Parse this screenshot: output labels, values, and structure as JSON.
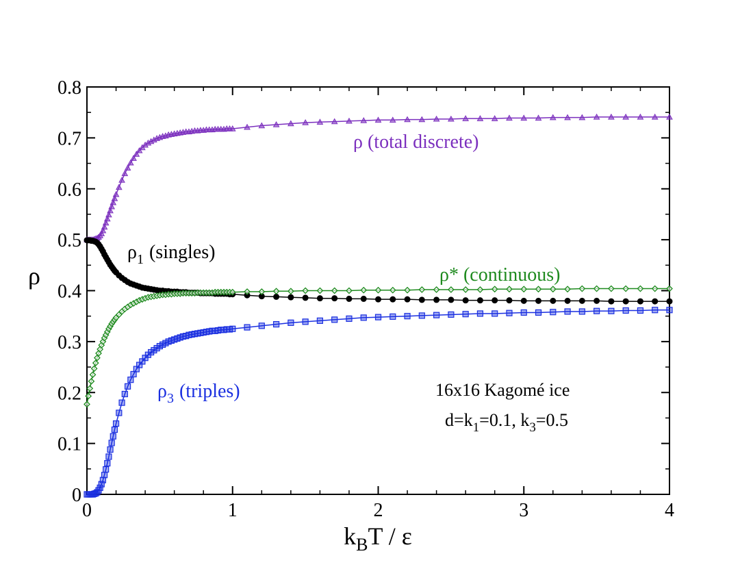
{
  "chart_data": {
    "type": "line",
    "title": "",
    "xlabel": {
      "main": "k",
      "sub": "B",
      "rest": "T / ε"
    },
    "ylabel": "ρ",
    "xlim": [
      0,
      4
    ],
    "ylim": [
      0,
      0.8
    ],
    "x_ticks": [
      "0",
      "1",
      "2",
      "3",
      "4"
    ],
    "y_ticks": [
      "0",
      "0.1",
      "0.2",
      "0.3",
      "0.4",
      "0.5",
      "0.6",
      "0.7",
      "0.8"
    ],
    "x_tick_values": [
      0,
      1,
      2,
      3,
      4
    ],
    "y_tick_values": [
      0,
      0.1,
      0.2,
      0.3,
      0.4,
      0.5,
      0.6,
      0.7,
      0.8
    ],
    "grid": false,
    "series": [
      {
        "name": "ρ (total discrete)",
        "marker": "triangle",
        "color": "#7b2fbe",
        "x": [
          0.0,
          0.01,
          0.02,
          0.03,
          0.04,
          0.05,
          0.06,
          0.07,
          0.08,
          0.09,
          0.1,
          0.11,
          0.12,
          0.13,
          0.14,
          0.15,
          0.16,
          0.17,
          0.18,
          0.19,
          0.2,
          0.22,
          0.24,
          0.26,
          0.28,
          0.3,
          0.32,
          0.34,
          0.36,
          0.38,
          0.4,
          0.42,
          0.44,
          0.46,
          0.48,
          0.5,
          0.52,
          0.54,
          0.56,
          0.58,
          0.6,
          0.62,
          0.64,
          0.66,
          0.68,
          0.7,
          0.72,
          0.74,
          0.76,
          0.78,
          0.8,
          0.82,
          0.84,
          0.86,
          0.88,
          0.9,
          0.92,
          0.94,
          0.96,
          0.98,
          1.0,
          1.1,
          1.2,
          1.3,
          1.4,
          1.5,
          1.6,
          1.7,
          1.8,
          1.9,
          2.0,
          2.1,
          2.2,
          2.3,
          2.4,
          2.5,
          2.6,
          2.7,
          2.8,
          2.9,
          3.0,
          3.1,
          3.2,
          3.3,
          3.4,
          3.5,
          3.6,
          3.7,
          3.8,
          3.9,
          4.0
        ],
        "y": [
          0.5,
          0.5,
          0.5,
          0.5,
          0.5,
          0.501,
          0.502,
          0.503,
          0.505,
          0.508,
          0.512,
          0.518,
          0.525,
          0.533,
          0.541,
          0.549,
          0.557,
          0.565,
          0.573,
          0.581,
          0.589,
          0.603,
          0.617,
          0.63,
          0.641,
          0.651,
          0.66,
          0.668,
          0.675,
          0.681,
          0.686,
          0.69,
          0.693,
          0.696,
          0.699,
          0.701,
          0.703,
          0.704,
          0.706,
          0.707,
          0.708,
          0.709,
          0.71,
          0.711,
          0.712,
          0.712,
          0.713,
          0.714,
          0.714,
          0.715,
          0.715,
          0.716,
          0.716,
          0.716,
          0.717,
          0.717,
          0.717,
          0.717,
          0.718,
          0.718,
          0.718,
          0.721,
          0.724,
          0.726,
          0.728,
          0.73,
          0.731,
          0.732,
          0.733,
          0.734,
          0.735,
          0.735,
          0.736,
          0.736,
          0.737,
          0.737,
          0.738,
          0.738,
          0.738,
          0.739,
          0.739,
          0.739,
          0.74,
          0.74,
          0.74,
          0.741,
          0.741,
          0.741,
          0.741,
          0.741,
          0.741
        ]
      },
      {
        "name": "ρ1 (singles)",
        "marker": "circle",
        "color": "#000000",
        "x": [
          0.0,
          0.01,
          0.02,
          0.03,
          0.04,
          0.05,
          0.06,
          0.07,
          0.08,
          0.09,
          0.1,
          0.11,
          0.12,
          0.13,
          0.14,
          0.15,
          0.16,
          0.17,
          0.18,
          0.19,
          0.2,
          0.22,
          0.24,
          0.26,
          0.28,
          0.3,
          0.32,
          0.34,
          0.36,
          0.38,
          0.4,
          0.42,
          0.44,
          0.46,
          0.48,
          0.5,
          0.52,
          0.54,
          0.56,
          0.58,
          0.6,
          0.62,
          0.64,
          0.66,
          0.68,
          0.7,
          0.72,
          0.74,
          0.76,
          0.78,
          0.8,
          0.82,
          0.84,
          0.86,
          0.88,
          0.9,
          0.92,
          0.94,
          0.96,
          0.98,
          1.0,
          1.1,
          1.2,
          1.3,
          1.4,
          1.5,
          1.6,
          1.7,
          1.8,
          1.9,
          2.0,
          2.1,
          2.2,
          2.3,
          2.4,
          2.5,
          2.6,
          2.7,
          2.8,
          2.9,
          3.0,
          3.1,
          3.2,
          3.3,
          3.4,
          3.5,
          3.6,
          3.7,
          3.8,
          3.9,
          4.0
        ],
        "y": [
          0.499,
          0.499,
          0.499,
          0.498,
          0.498,
          0.497,
          0.496,
          0.494,
          0.491,
          0.487,
          0.482,
          0.477,
          0.471,
          0.466,
          0.461,
          0.456,
          0.451,
          0.447,
          0.443,
          0.439,
          0.436,
          0.43,
          0.425,
          0.421,
          0.417,
          0.414,
          0.412,
          0.41,
          0.408,
          0.406,
          0.405,
          0.404,
          0.403,
          0.402,
          0.401,
          0.4,
          0.4,
          0.399,
          0.399,
          0.398,
          0.398,
          0.398,
          0.397,
          0.397,
          0.397,
          0.396,
          0.396,
          0.396,
          0.396,
          0.395,
          0.395,
          0.395,
          0.395,
          0.395,
          0.394,
          0.394,
          0.394,
          0.394,
          0.394,
          0.393,
          0.393,
          0.391,
          0.389,
          0.388,
          0.387,
          0.386,
          0.385,
          0.385,
          0.384,
          0.384,
          0.383,
          0.383,
          0.383,
          0.382,
          0.382,
          0.382,
          0.381,
          0.381,
          0.381,
          0.381,
          0.38,
          0.38,
          0.38,
          0.38,
          0.38,
          0.38,
          0.379,
          0.379,
          0.379,
          0.379,
          0.379
        ]
      },
      {
        "name": "ρ* (continuous)",
        "marker": "diamond",
        "color": "#1e8a1e",
        "x": [
          0.0,
          0.01,
          0.02,
          0.03,
          0.04,
          0.05,
          0.06,
          0.07,
          0.08,
          0.09,
          0.1,
          0.11,
          0.12,
          0.13,
          0.14,
          0.15,
          0.16,
          0.17,
          0.18,
          0.19,
          0.2,
          0.22,
          0.24,
          0.26,
          0.28,
          0.3,
          0.32,
          0.34,
          0.36,
          0.38,
          0.4,
          0.42,
          0.44,
          0.46,
          0.48,
          0.5,
          0.52,
          0.54,
          0.56,
          0.58,
          0.6,
          0.62,
          0.64,
          0.66,
          0.68,
          0.7,
          0.72,
          0.74,
          0.76,
          0.78,
          0.8,
          0.82,
          0.84,
          0.86,
          0.88,
          0.9,
          0.92,
          0.94,
          0.96,
          0.98,
          1.0,
          1.1,
          1.2,
          1.3,
          1.4,
          1.5,
          1.6,
          1.7,
          1.8,
          1.9,
          2.0,
          2.1,
          2.2,
          2.3,
          2.4,
          2.5,
          2.6,
          2.7,
          2.8,
          2.9,
          3.0,
          3.1,
          3.2,
          3.3,
          3.4,
          3.5,
          3.6,
          3.7,
          3.8,
          3.9,
          4.0
        ],
        "y": [
          0.177,
          0.193,
          0.208,
          0.222,
          0.235,
          0.247,
          0.258,
          0.268,
          0.277,
          0.285,
          0.293,
          0.3,
          0.307,
          0.313,
          0.319,
          0.325,
          0.33,
          0.335,
          0.339,
          0.343,
          0.347,
          0.353,
          0.359,
          0.364,
          0.368,
          0.372,
          0.375,
          0.378,
          0.381,
          0.383,
          0.385,
          0.387,
          0.388,
          0.389,
          0.39,
          0.391,
          0.392,
          0.392,
          0.393,
          0.393,
          0.394,
          0.394,
          0.394,
          0.395,
          0.395,
          0.395,
          0.395,
          0.395,
          0.396,
          0.396,
          0.396,
          0.396,
          0.396,
          0.396,
          0.397,
          0.397,
          0.397,
          0.397,
          0.397,
          0.397,
          0.397,
          0.398,
          0.398,
          0.399,
          0.399,
          0.4,
          0.4,
          0.4,
          0.4,
          0.401,
          0.401,
          0.401,
          0.401,
          0.402,
          0.402,
          0.402,
          0.402,
          0.402,
          0.403,
          0.403,
          0.403,
          0.403,
          0.403,
          0.403,
          0.404,
          0.404,
          0.404,
          0.404,
          0.404,
          0.404,
          0.404
        ]
      },
      {
        "name": "ρ3 (triples)",
        "marker": "square",
        "color": "#1a2fe0",
        "x": [
          0.0,
          0.01,
          0.02,
          0.03,
          0.04,
          0.05,
          0.06,
          0.07,
          0.08,
          0.09,
          0.1,
          0.11,
          0.12,
          0.13,
          0.14,
          0.15,
          0.16,
          0.17,
          0.18,
          0.19,
          0.2,
          0.22,
          0.24,
          0.26,
          0.28,
          0.3,
          0.32,
          0.34,
          0.36,
          0.38,
          0.4,
          0.42,
          0.44,
          0.46,
          0.48,
          0.5,
          0.52,
          0.54,
          0.56,
          0.58,
          0.6,
          0.62,
          0.64,
          0.66,
          0.68,
          0.7,
          0.72,
          0.74,
          0.76,
          0.78,
          0.8,
          0.82,
          0.84,
          0.86,
          0.88,
          0.9,
          0.92,
          0.94,
          0.96,
          0.98,
          1.0,
          1.1,
          1.2,
          1.3,
          1.4,
          1.5,
          1.6,
          1.7,
          1.8,
          1.9,
          2.0,
          2.1,
          2.2,
          2.3,
          2.4,
          2.5,
          2.6,
          2.7,
          2.8,
          2.9,
          3.0,
          3.1,
          3.2,
          3.3,
          3.4,
          3.5,
          3.6,
          3.7,
          3.8,
          3.9,
          4.0
        ],
        "y": [
          0.0,
          0.0,
          0.0,
          0.0,
          0.0,
          0.001,
          0.002,
          0.004,
          0.008,
          0.013,
          0.02,
          0.028,
          0.038,
          0.049,
          0.061,
          0.074,
          0.088,
          0.101,
          0.114,
          0.127,
          0.139,
          0.16,
          0.18,
          0.197,
          0.212,
          0.225,
          0.236,
          0.246,
          0.254,
          0.261,
          0.268,
          0.274,
          0.279,
          0.283,
          0.287,
          0.291,
          0.294,
          0.297,
          0.3,
          0.302,
          0.304,
          0.306,
          0.308,
          0.31,
          0.311,
          0.313,
          0.314,
          0.315,
          0.316,
          0.317,
          0.318,
          0.319,
          0.32,
          0.321,
          0.321,
          0.322,
          0.323,
          0.323,
          0.324,
          0.324,
          0.325,
          0.328,
          0.331,
          0.334,
          0.337,
          0.339,
          0.341,
          0.343,
          0.345,
          0.347,
          0.348,
          0.349,
          0.35,
          0.351,
          0.352,
          0.353,
          0.354,
          0.355,
          0.355,
          0.356,
          0.357,
          0.357,
          0.358,
          0.359,
          0.359,
          0.36,
          0.36,
          0.361,
          0.361,
          0.362,
          0.362
        ]
      }
    ],
    "annotations": {
      "rho_total": "ρ (total discrete)",
      "rho1_main": "ρ",
      "rho1_sub": "1",
      "rho1_rest": "(singles)",
      "rho_star": "ρ* (continuous)",
      "rho3_main": "ρ",
      "rho3_sub": "3",
      "rho3_rest": "(triples)",
      "system": "16x16 Kagomé ice",
      "params_a": "d=k",
      "params_sub1": "1",
      "params_b": "=0.1, k",
      "params_sub3": "3",
      "params_c": "=0.5"
    }
  }
}
